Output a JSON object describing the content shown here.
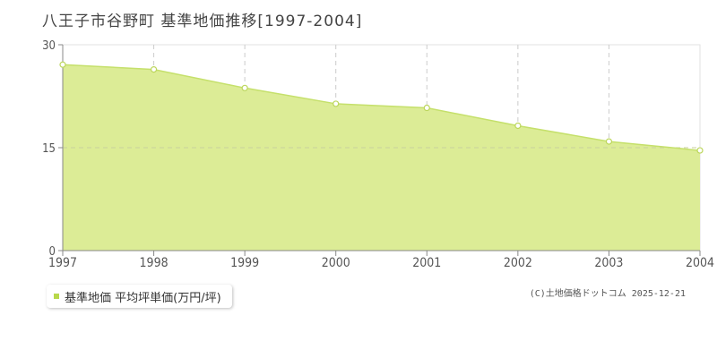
{
  "title": "八王子市谷野町 基準地価推移[1997-2004]",
  "colors": {
    "fill": "#dcec96",
    "line": "#c5e06b",
    "point_fill": "#ffffff",
    "point_stroke": "#bcd65c",
    "grid": "#cccccc",
    "axis": "#888888",
    "legend_swatch": "#b8d84a"
  },
  "legend": {
    "label": "基準地価 平均坪単価(万円/坪)"
  },
  "copyright": "(C)土地価格ドットコム 2025-12-21",
  "chart_data": {
    "type": "area",
    "x": [
      "1997",
      "1998",
      "1999",
      "2000",
      "2001",
      "2002",
      "2003",
      "2004"
    ],
    "series": [
      {
        "name": "基準地価 平均坪単価(万円/坪)",
        "values": [
          27.1,
          26.4,
          23.7,
          21.4,
          20.8,
          18.2,
          15.9,
          14.6
        ]
      }
    ],
    "ylim": [
      0,
      30
    ],
    "yticks": [
      "0",
      "15",
      "30"
    ],
    "grid": true,
    "legend_position": "bottom-left"
  }
}
